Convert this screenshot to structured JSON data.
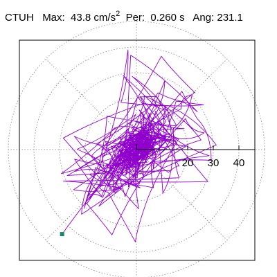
{
  "header": {
    "station": "CTUH",
    "max_label": "Max:",
    "max_value": "43.8",
    "max_unit": "cm/s",
    "max_unit_exp": "2",
    "per_label": "Per:",
    "per_value": "0.260",
    "per_unit": "s",
    "ang_label": "Ang:",
    "ang_value": "231.1"
  },
  "colors": {
    "trace": "#8f00cc",
    "end_marker": "#108a70",
    "grid": "#9a9a9a",
    "axis": "#000000",
    "frame": "#000000"
  },
  "chart_data": {
    "type": "polar-orbit",
    "title": "",
    "radial_tick_labels": [
      "20",
      "30",
      "40"
    ],
    "radial_ticks": [
      20,
      30,
      40
    ],
    "grid_circles": [
      10,
      20,
      30,
      40,
      50
    ],
    "angular_grid_deg": [
      0,
      45,
      90,
      135,
      180,
      225,
      270,
      315
    ],
    "axis_max": 46,
    "grid": true,
    "max_amplitude": 43.8,
    "max_angle_deg": 231.1,
    "end_point": {
      "x": -29.0,
      "y": -33.0
    },
    "trace": {
      "seed": 7,
      "segments": 420,
      "dominant_direction_deg": 45,
      "core_radius": 6
    }
  }
}
